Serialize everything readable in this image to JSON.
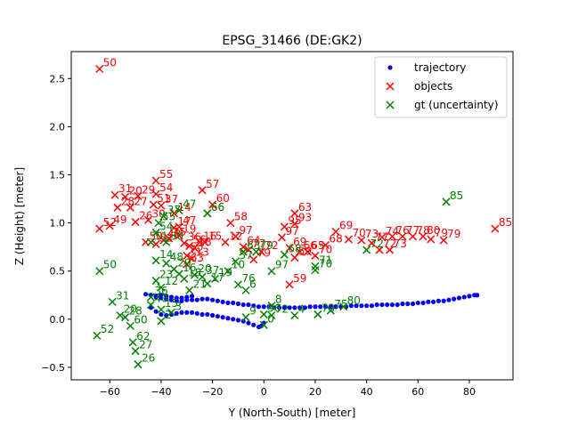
{
  "chart_data": {
    "type": "scatter",
    "title": "EPSG_31466 (DE:GK2)",
    "xlabel": "Y (North-South) [meter]",
    "ylabel": "Z (Height) [meter]",
    "xlim": [
      -75,
      97
    ],
    "ylim": [
      -0.63,
      2.78
    ],
    "xticks": [
      -60,
      -40,
      -20,
      0,
      20,
      40,
      60,
      80
    ],
    "yticks": [
      -0.5,
      0.0,
      0.5,
      1.0,
      1.5,
      2.0,
      2.5
    ],
    "xtick_labels": [
      "−60",
      "−40",
      "−20",
      "0",
      "20",
      "40",
      "60",
      "80"
    ],
    "ytick_labels": [
      "−0.5",
      "0.0",
      "0.5",
      "1.0",
      "1.5",
      "2.0",
      "2.5"
    ],
    "grid": false,
    "legend_position": "top-right",
    "legend": [
      {
        "label": "trajectory",
        "marker": "dot",
        "color": "#0000ff"
      },
      {
        "label": "objects",
        "marker": "x",
        "color": "#ff0000"
      },
      {
        "label": "gt (uncertainty)",
        "marker": "x",
        "color": "#008000"
      }
    ],
    "series": [
      {
        "name": "trajectory",
        "marker": "dot",
        "color": "#0000ff",
        "points": [
          [
            -46,
            0.26
          ],
          [
            -44,
            0.25
          ],
          [
            -42,
            0.23
          ],
          [
            -40,
            0.22
          ],
          [
            -38,
            0.21
          ],
          [
            -36,
            0.2
          ],
          [
            -34,
            0.19
          ],
          [
            -32,
            0.19
          ],
          [
            -30,
            0.2
          ],
          [
            -28,
            0.2
          ],
          [
            -26,
            0.2
          ],
          [
            -24,
            0.21
          ],
          [
            -22,
            0.21
          ],
          [
            -20,
            0.2
          ],
          [
            -18,
            0.19
          ],
          [
            -16,
            0.18
          ],
          [
            -14,
            0.17
          ],
          [
            -12,
            0.17
          ],
          [
            -10,
            0.16
          ],
          [
            -8,
            0.15
          ],
          [
            -6,
            0.15
          ],
          [
            -4,
            0.14
          ],
          [
            -2,
            0.13
          ],
          [
            0,
            0.13
          ],
          [
            2,
            0.13
          ],
          [
            4,
            0.12
          ],
          [
            6,
            0.12
          ],
          [
            8,
            0.12
          ],
          [
            10,
            0.12
          ],
          [
            12,
            0.12
          ],
          [
            14,
            0.12
          ],
          [
            16,
            0.12
          ],
          [
            18,
            0.13
          ],
          [
            20,
            0.13
          ],
          [
            22,
            0.13
          ],
          [
            24,
            0.13
          ],
          [
            26,
            0.13
          ],
          [
            28,
            0.13
          ],
          [
            30,
            0.13
          ],
          [
            32,
            0.13
          ],
          [
            34,
            0.14
          ],
          [
            36,
            0.14
          ],
          [
            38,
            0.14
          ],
          [
            40,
            0.14
          ],
          [
            42,
            0.14
          ],
          [
            44,
            0.15
          ],
          [
            46,
            0.15
          ],
          [
            48,
            0.15
          ],
          [
            50,
            0.15
          ],
          [
            52,
            0.15
          ],
          [
            54,
            0.16
          ],
          [
            56,
            0.16
          ],
          [
            58,
            0.16
          ],
          [
            60,
            0.17
          ],
          [
            62,
            0.17
          ],
          [
            64,
            0.18
          ],
          [
            66,
            0.18
          ],
          [
            68,
            0.19
          ],
          [
            70,
            0.19
          ],
          [
            72,
            0.2
          ],
          [
            74,
            0.21
          ],
          [
            76,
            0.22
          ],
          [
            78,
            0.23
          ],
          [
            80,
            0.24
          ],
          [
            82,
            0.25
          ],
          [
            83,
            0.25
          ],
          [
            -44,
            0.12
          ],
          [
            -42,
            0.08
          ],
          [
            -40,
            0.05
          ],
          [
            -38,
            0.04
          ],
          [
            -36,
            0.05
          ],
          [
            -34,
            0.06
          ],
          [
            -32,
            0.07
          ],
          [
            -30,
            0.07
          ],
          [
            -28,
            0.07
          ],
          [
            -26,
            0.06
          ],
          [
            -24,
            0.05
          ],
          [
            -22,
            0.05
          ],
          [
            -20,
            0.04
          ],
          [
            -18,
            0.03
          ],
          [
            -16,
            0.02
          ],
          [
            -14,
            0.01
          ],
          [
            -12,
            0.0
          ],
          [
            -10,
            -0.01
          ],
          [
            -8,
            -0.02
          ],
          [
            -6,
            -0.04
          ],
          [
            -4,
            -0.06
          ],
          [
            -2,
            -0.08
          ],
          [
            -1,
            -0.07
          ],
          [
            0,
            -0.04
          ],
          [
            -42,
            0.24
          ],
          [
            -40,
            0.25
          ],
          [
            -38,
            0.24
          ],
          [
            -36,
            0.23
          ],
          [
            -34,
            0.22
          ],
          [
            -32,
            0.22
          ],
          [
            -30,
            0.23
          ],
          [
            -28,
            0.24
          ]
        ]
      },
      {
        "name": "objects",
        "marker": "x",
        "color": "#ff0000",
        "points": [
          {
            "x": -64,
            "y": 2.6,
            "label": "50"
          },
          {
            "x": -42,
            "y": 1.44,
            "label": "55"
          },
          {
            "x": -24,
            "y": 1.34,
            "label": "57"
          },
          {
            "x": -20,
            "y": 1.19,
            "label": "60"
          },
          {
            "x": -58,
            "y": 1.29,
            "label": "31"
          },
          {
            "x": -54,
            "y": 1.27,
            "label": "20"
          },
          {
            "x": -49,
            "y": 1.28,
            "label": "29"
          },
          {
            "x": -42,
            "y": 1.3,
            "label": "54"
          },
          {
            "x": -40,
            "y": 1.18,
            "label": "37"
          },
          {
            "x": -43,
            "y": 1.19,
            "label": "51"
          },
          {
            "x": -52,
            "y": 1.16,
            "label": "27"
          },
          {
            "x": -57,
            "y": 1.16,
            "label": "28"
          },
          {
            "x": -50,
            "y": 1.01,
            "label": "26"
          },
          {
            "x": -64,
            "y": 0.94,
            "label": "52"
          },
          {
            "x": -60,
            "y": 0.97,
            "label": "49"
          },
          {
            "x": -45,
            "y": 1.03,
            "label": "30"
          },
          {
            "x": -35,
            "y": 1.1,
            "label": "14"
          },
          {
            "x": -33,
            "y": 0.96,
            "label": "47"
          },
          {
            "x": -22,
            "y": 1.1,
            "label": "66"
          },
          {
            "x": -13,
            "y": 1.0,
            "label": "58"
          },
          {
            "x": -11,
            "y": 0.86,
            "label": "97"
          },
          {
            "x": -8,
            "y": 0.75,
            "label": "64"
          },
          {
            "x": -6,
            "y": 0.72,
            "label": "77"
          },
          {
            "x": -4,
            "y": 0.62,
            "label": "79"
          },
          {
            "x": -1,
            "y": 0.7,
            "label": "72"
          },
          {
            "x": -46,
            "y": 0.8,
            "label": "50"
          },
          {
            "x": -42,
            "y": 0.78,
            "label": "52"
          },
          {
            "x": -39,
            "y": 0.82,
            "label": "48"
          },
          {
            "x": -37,
            "y": 0.84,
            "label": "35"
          },
          {
            "x": -35,
            "y": 0.95,
            "label": "17"
          },
          {
            "x": -33,
            "y": 0.87,
            "label": "19"
          },
          {
            "x": -31,
            "y": 0.79,
            "label": "36"
          },
          {
            "x": -29,
            "y": 0.76,
            "label": "56"
          },
          {
            "x": -27,
            "y": 0.74,
            "label": "18"
          },
          {
            "x": -25,
            "y": 0.8,
            "label": "16"
          },
          {
            "x": -23,
            "y": 0.8,
            "label": "15"
          },
          {
            "x": -15,
            "y": 0.8,
            "label": "12"
          },
          {
            "x": -30,
            "y": 0.66,
            "label": "22"
          },
          {
            "x": -28,
            "y": 0.63,
            "label": "13"
          },
          {
            "x": -30,
            "y": 0.57,
            "label": "63"
          },
          {
            "x": 8,
            "y": 0.96,
            "label": "95"
          },
          {
            "x": 12,
            "y": 0.99,
            "label": "93"
          },
          {
            "x": 12,
            "y": 1.1,
            "label": "63"
          },
          {
            "x": 7,
            "y": 0.85,
            "label": "97"
          },
          {
            "x": 10,
            "y": 0.74,
            "label": "69"
          },
          {
            "x": 12,
            "y": 0.64,
            "label": "59"
          },
          {
            "x": 14,
            "y": 0.7,
            "label": "66"
          },
          {
            "x": 17,
            "y": 0.7,
            "label": "65"
          },
          {
            "x": 20,
            "y": 0.66,
            "label": "70"
          },
          {
            "x": 24,
            "y": 0.77,
            "label": "68"
          },
          {
            "x": 28,
            "y": 0.91,
            "label": "69"
          },
          {
            "x": 33,
            "y": 0.83,
            "label": "70"
          },
          {
            "x": 38,
            "y": 0.82,
            "label": "73"
          },
          {
            "x": 42,
            "y": 0.79,
            "label": "77"
          },
          {
            "x": 46,
            "y": 0.85,
            "label": "74"
          },
          {
            "x": 50,
            "y": 0.86,
            "label": "76"
          },
          {
            "x": 54,
            "y": 0.86,
            "label": "77"
          },
          {
            "x": 58,
            "y": 0.86,
            "label": "78"
          },
          {
            "x": 62,
            "y": 0.86,
            "label": "80"
          },
          {
            "x": 65,
            "y": 0.83,
            "label": "79"
          },
          {
            "x": 70,
            "y": 0.82,
            "label": "79"
          },
          {
            "x": 45,
            "y": 0.72,
            "label": "72"
          },
          {
            "x": 49,
            "y": 0.72,
            "label": "73"
          },
          {
            "x": 10,
            "y": 0.36,
            "label": "59"
          },
          {
            "x": 90,
            "y": 0.94,
            "label": "85"
          }
        ]
      },
      {
        "name": "gt (uncertainty)",
        "marker": "x",
        "color": "#008000",
        "points": [
          {
            "x": -64,
            "y": 0.5,
            "label": "50"
          },
          {
            "x": -59,
            "y": 0.18,
            "label": "31"
          },
          {
            "x": -56,
            "y": 0.04,
            "label": "20"
          },
          {
            "x": -54,
            "y": 0.02,
            "label": "28"
          },
          {
            "x": -52,
            "y": -0.07,
            "label": "60"
          },
          {
            "x": -51,
            "y": -0.24,
            "label": "62"
          },
          {
            "x": -50,
            "y": -0.33,
            "label": "27"
          },
          {
            "x": -49,
            "y": -0.47,
            "label": "26"
          },
          {
            "x": -65,
            "y": -0.17,
            "label": "52"
          },
          {
            "x": -41,
            "y": 1.0,
            "label": "55"
          },
          {
            "x": -39,
            "y": 1.07,
            "label": "37"
          },
          {
            "x": -33,
            "y": 1.13,
            "label": "47"
          },
          {
            "x": -42,
            "y": 0.9,
            "label": "54"
          },
          {
            "x": -44,
            "y": 0.8,
            "label": "51"
          },
          {
            "x": -38,
            "y": 0.8,
            "label": "30"
          },
          {
            "x": -42,
            "y": 0.61,
            "label": "14"
          },
          {
            "x": -38,
            "y": 0.58,
            "label": "48"
          },
          {
            "x": -35,
            "y": 0.52,
            "label": "29"
          },
          {
            "x": -33,
            "y": 0.47,
            "label": "16"
          },
          {
            "x": -31,
            "y": 0.42,
            "label": "18"
          },
          {
            "x": -27,
            "y": 0.46,
            "label": "20"
          },
          {
            "x": -24,
            "y": 0.44,
            "label": "37"
          },
          {
            "x": -19,
            "y": 0.42,
            "label": "19"
          },
          {
            "x": -14,
            "y": 0.5,
            "label": "10"
          },
          {
            "x": -42,
            "y": 0.4,
            "label": "23"
          },
          {
            "x": -40,
            "y": 0.33,
            "label": "12"
          },
          {
            "x": -44,
            "y": 0.23,
            "label": "36"
          },
          {
            "x": -29,
            "y": 0.3,
            "label": "21"
          },
          {
            "x": -22,
            "y": 0.37,
            "label": "17"
          },
          {
            "x": -10,
            "y": 0.36,
            "label": "76"
          },
          {
            "x": -7,
            "y": 0.3,
            "label": "6"
          },
          {
            "x": -44,
            "y": 0.15,
            "label": "40"
          },
          {
            "x": -40,
            "y": 0.1,
            "label": "15"
          },
          {
            "x": -36,
            "y": 0.07,
            "label": "3"
          },
          {
            "x": -40,
            "y": -0.02,
            "label": "2"
          },
          {
            "x": -22,
            "y": 1.1,
            "label": "66"
          },
          {
            "x": -11,
            "y": 0.6,
            "label": "57"
          },
          {
            "x": -8,
            "y": 0.7,
            "label": "63"
          },
          {
            "x": -3,
            "y": 0.7,
            "label": "79"
          },
          {
            "x": 3,
            "y": 0.14,
            "label": "8"
          },
          {
            "x": 0,
            "y": 0.05,
            "label": "96"
          },
          {
            "x": 3,
            "y": 0.04,
            "label": "72"
          },
          {
            "x": -7,
            "y": 0.02,
            "label": "9"
          },
          {
            "x": 0,
            "y": -0.06,
            "label": "0"
          },
          {
            "x": 3,
            "y": 0.5,
            "label": "97"
          },
          {
            "x": 8,
            "y": 0.67,
            "label": "68"
          },
          {
            "x": 12,
            "y": 0.04,
            "label": "4"
          },
          {
            "x": 20,
            "y": 0.55,
            "label": "71"
          },
          {
            "x": 20,
            "y": 0.51,
            "label": "70"
          },
          {
            "x": 21,
            "y": 0.05,
            "label": "73"
          },
          {
            "x": 26,
            "y": 0.09,
            "label": "75"
          },
          {
            "x": 31,
            "y": 0.13,
            "label": "80"
          },
          {
            "x": 40,
            "y": 0.72,
            "label": "72"
          },
          {
            "x": 71,
            "y": 1.22,
            "label": "85"
          }
        ]
      }
    ]
  }
}
